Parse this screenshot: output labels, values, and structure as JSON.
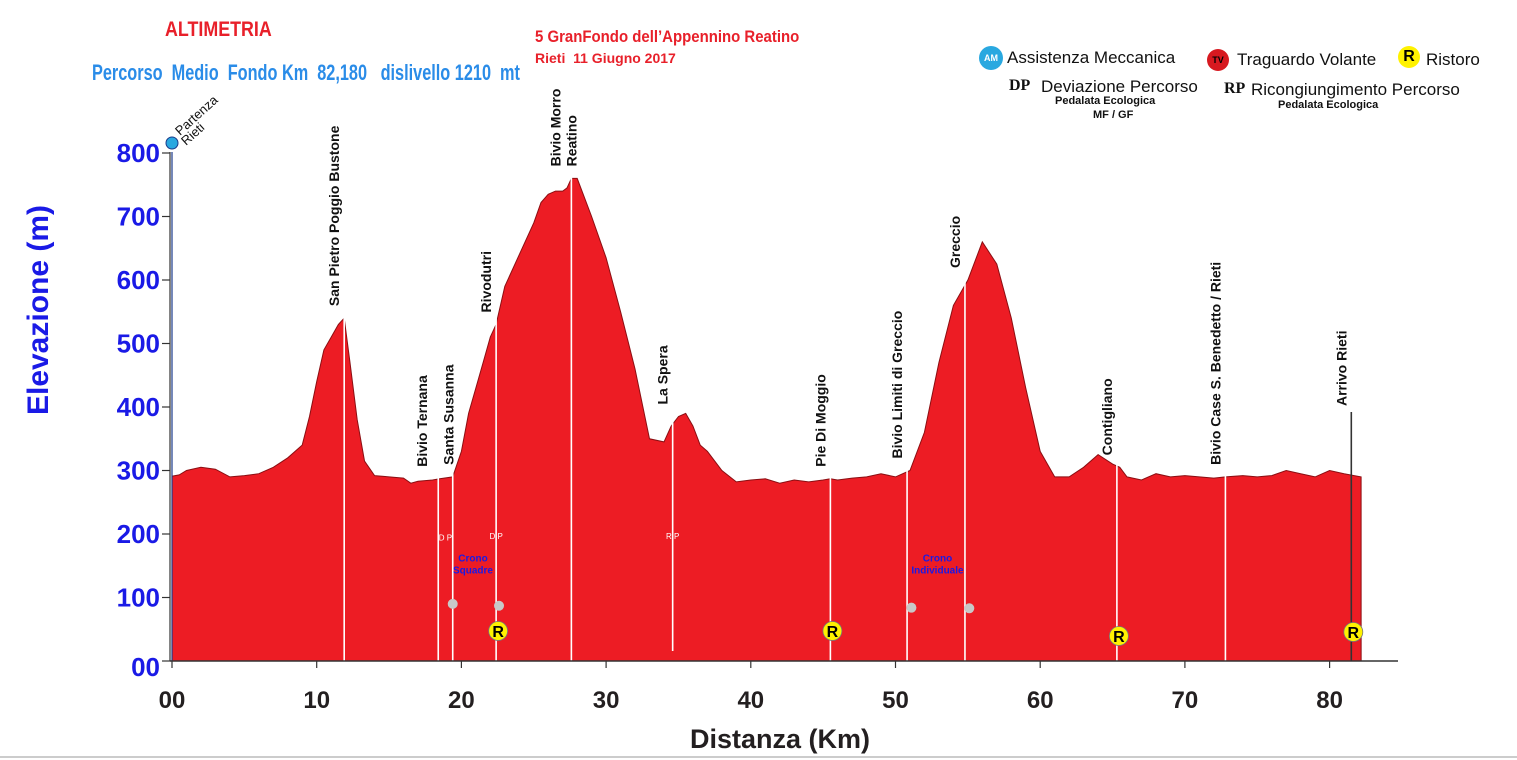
{
  "header": {
    "title": "ALTIMETRIA",
    "subtitle": "Percorso  Medio  Fondo Km  82,180   dislivello 1210  mt",
    "event_name": "5 GranFondo dell’Appennino Reatino",
    "event_date": "Rieti  11 Giugno 2017"
  },
  "legend": {
    "assistenza_badge": "AM",
    "assistenza": "Assistenza Meccanica",
    "traguardo_badge": "TV",
    "traguardo": "Traguardo Volante",
    "ristoro_badge": "R",
    "ristoro": "Ristoro",
    "dp_code": "DP",
    "dp_label": "Deviazione Percorso",
    "dp_sub1": "Pedalata Ecologica",
    "dp_sub2": "MF / GF",
    "rp_code": "RP",
    "rp_label": "Ricongiungimento Percorso",
    "rp_sub": "Pedalata Ecologica"
  },
  "colors": {
    "profile_fill": "#ED1C24",
    "axis_label": "#1A1AE6",
    "title_red": "#E8202A",
    "subtitle_blue": "#2A8CE8",
    "ristoro_yellow": "#FFF200",
    "assistenza_blue": "#29A8E0",
    "traguardo_red": "#D71920"
  },
  "chart_data": {
    "type": "area",
    "xlabel": "Distanza (Km)",
    "ylabel": "Elevazione (m)",
    "xlim": [
      0,
      85
    ],
    "ylim": [
      0,
      850
    ],
    "x_ticks": [
      0,
      10,
      20,
      30,
      40,
      50,
      60,
      70,
      80
    ],
    "x_tick_labels": [
      "00",
      "10",
      "20",
      "30",
      "40",
      "50",
      "60",
      "70",
      "80"
    ],
    "y_ticks": [
      0,
      100,
      200,
      300,
      400,
      500,
      600,
      700,
      800
    ],
    "y_tick_labels": [
      "00",
      "100",
      "200",
      "300",
      "400",
      "500",
      "600",
      "700",
      "800"
    ],
    "grid": false,
    "series": [
      {
        "x": [
          0,
          0.5,
          1,
          2,
          3,
          4,
          5,
          6,
          7,
          8,
          9,
          9.5,
          10,
          10.5,
          11,
          11.5,
          11.9,
          12.3,
          12.8,
          13.3,
          14,
          15,
          16,
          16.5,
          17,
          18,
          18.5,
          19.4,
          20,
          20.5,
          21,
          21.5,
          22,
          22.4,
          23,
          24,
          25,
          25.5,
          26,
          26.5,
          27,
          27.3,
          27.6,
          28,
          29,
          30,
          31,
          32,
          33,
          34,
          34.5,
          35,
          35.5,
          36,
          36.5,
          37,
          38,
          39,
          40,
          41,
          42,
          43,
          44,
          45,
          45.5,
          46,
          47,
          48,
          49,
          50,
          51,
          52,
          53,
          54,
          55,
          56,
          57,
          58,
          59,
          60,
          61,
          62,
          63,
          64,
          65,
          65.5,
          66,
          67,
          68,
          69,
          70,
          71,
          72,
          72.8,
          74,
          75,
          76,
          77,
          78,
          79,
          80,
          81,
          82.18
        ],
        "y": [
          291,
          293,
          300,
          305,
          302,
          290,
          292,
          295,
          305,
          320,
          340,
          385,
          440,
          490,
          510,
          530,
          540,
          470,
          380,
          315,
          292,
          290,
          288,
          280,
          283,
          285,
          287,
          290,
          330,
          390,
          430,
          470,
          510,
          530,
          590,
          640,
          690,
          722,
          735,
          740,
          740,
          745,
          760,
          760,
          700,
          635,
          550,
          460,
          350,
          345,
          370,
          385,
          390,
          370,
          340,
          330,
          300,
          282,
          285,
          287,
          280,
          285,
          282,
          285,
          287,
          285,
          288,
          290,
          295,
          290,
          300,
          360,
          470,
          560,
          600,
          660,
          625,
          540,
          430,
          330,
          290,
          290,
          305,
          325,
          310,
          305,
          290,
          285,
          295,
          290,
          292,
          290,
          288,
          290,
          292,
          290,
          292,
          300,
          295,
          290,
          300,
          295,
          290
        ]
      }
    ],
    "annotations": [
      {
        "label": "San  Pietro Poggio Bustone",
        "x": 11.9
      },
      {
        "label": "Bivio Ternana",
        "x": 18.4
      },
      {
        "label": "Santa Susanna",
        "x": 19.4
      },
      {
        "label": "Rivodutri",
        "x": 22.4
      },
      {
        "label": "Bivio Morro",
        "x": 27.6
      },
      {
        "label": "Reatino",
        "x": 27.6
      },
      {
        "label": "La Spera",
        "x": 34.6
      },
      {
        "label": "Pie Di Moggio",
        "x": 45.5
      },
      {
        "label": "Bivio Limiti di Greccio",
        "x": 50.8
      },
      {
        "label": "Greccio",
        "x": 54.8
      },
      {
        "label": "Contigliano",
        "x": 65.3
      },
      {
        "label": "Bivio Case S. Benedetto / Rieti",
        "x": 72.8
      },
      {
        "label": "Arrivo Rieti",
        "x": 81.5
      },
      {
        "label": "Partenza",
        "x": 0
      },
      {
        "label": "Rieti",
        "x": 0
      }
    ],
    "ristoro": [
      22.4,
      45.5,
      65.3,
      81.5
    ],
    "dp_markers": [
      {
        "label": "D  P",
        "x": 18.9,
        "y": 190
      },
      {
        "label": "D    P",
        "x": 22.4,
        "y": 192
      }
    ],
    "rp_markers": [
      {
        "label": "R  P",
        "x": 34.6,
        "y": 192
      }
    ],
    "crono": [
      {
        "line1": "Crono",
        "line2": "Squadre",
        "x": 20.8,
        "y": 157
      },
      {
        "line1": "Crono",
        "line2": "Individuale",
        "x": 52.9,
        "y": 157
      }
    ],
    "waypoints": [
      {
        "x": 19.4,
        "y": 90
      },
      {
        "x": 22.6,
        "y": 87
      },
      {
        "x": 51.1,
        "y": 84
      },
      {
        "x": 55.1,
        "y": 83
      }
    ]
  }
}
